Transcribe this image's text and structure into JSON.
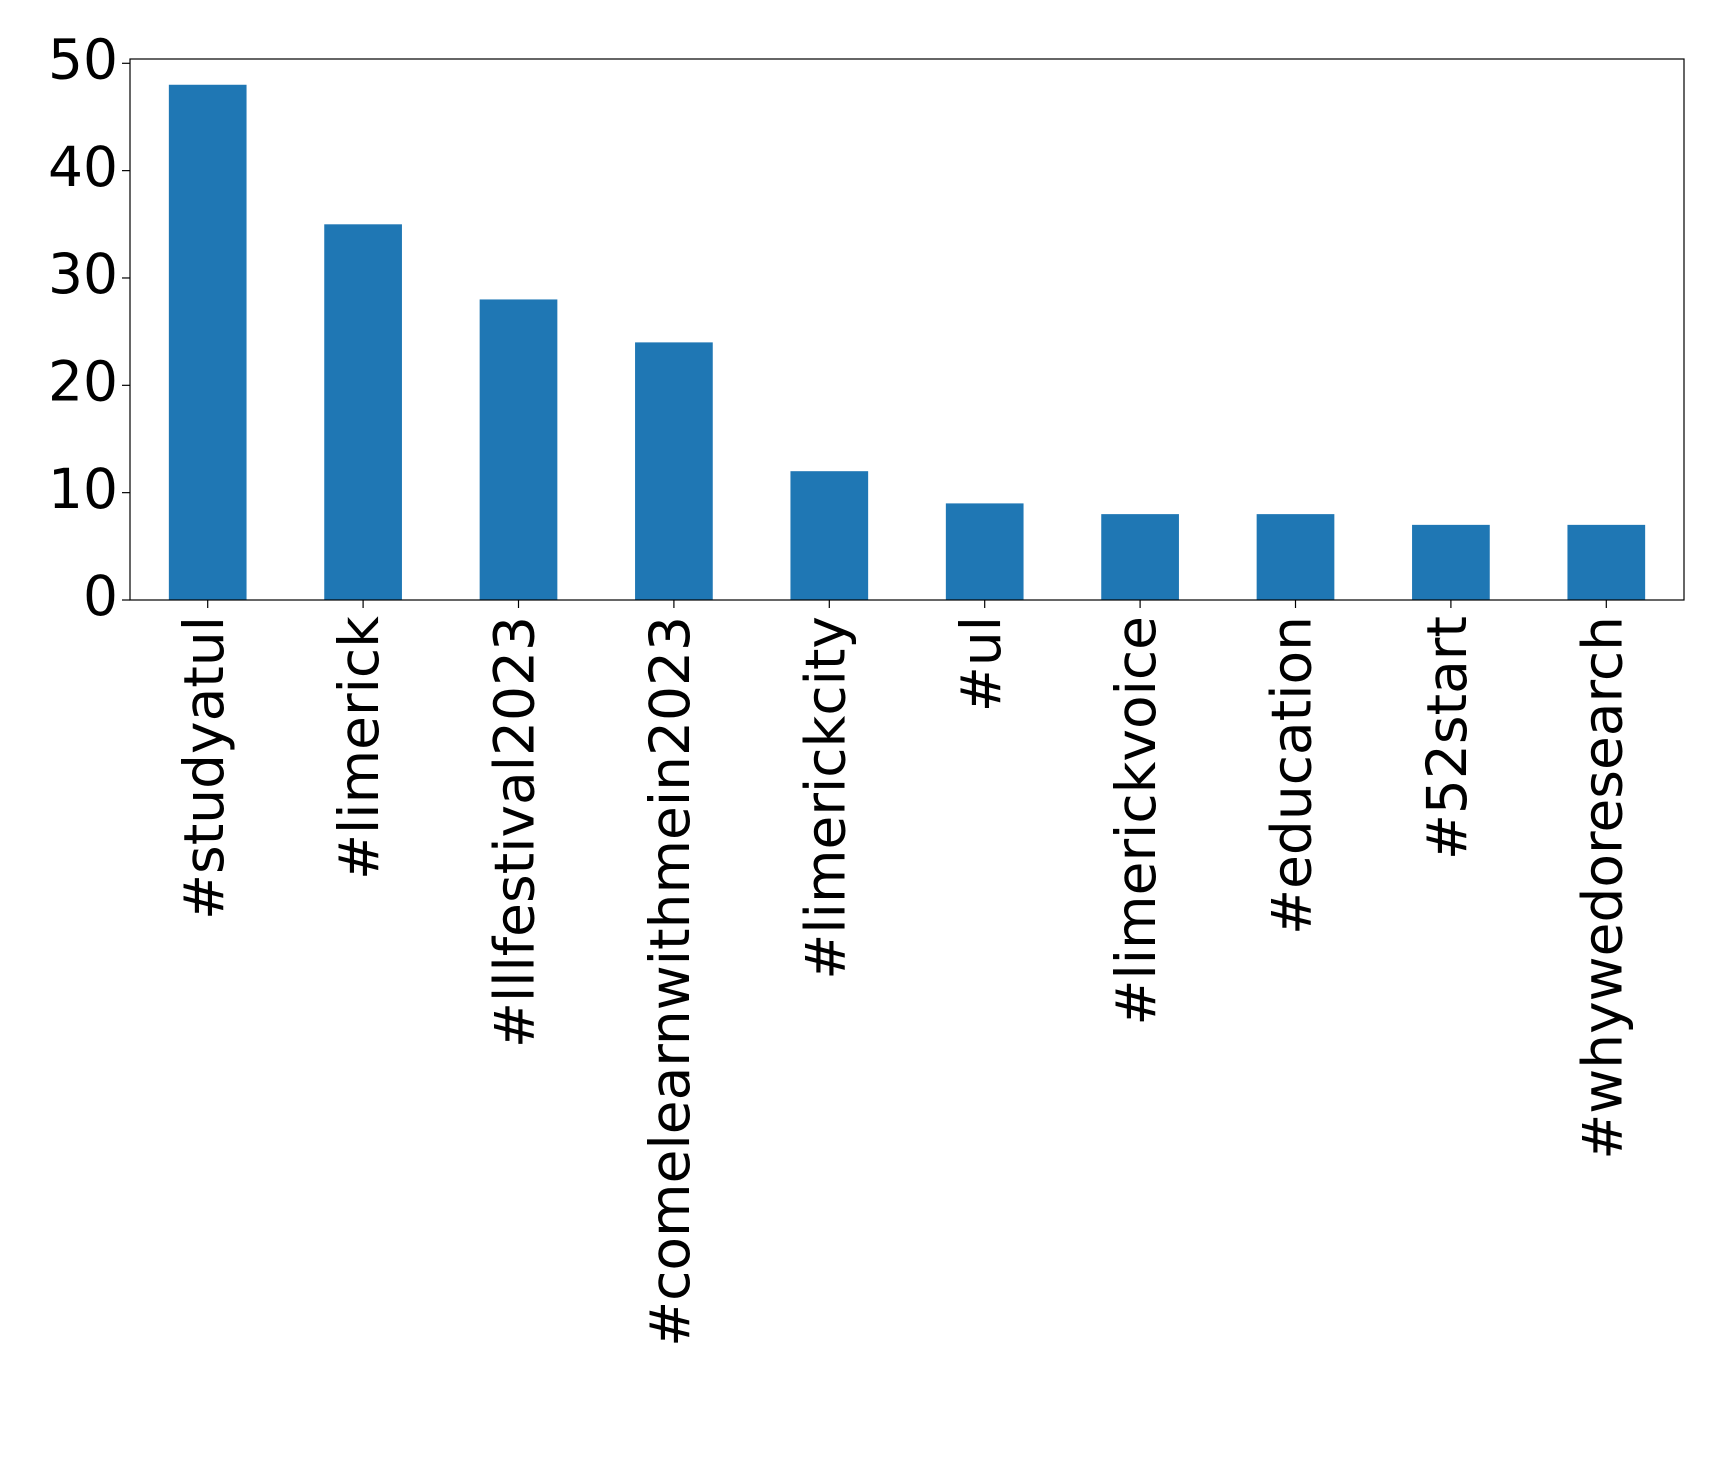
{
  "chart_data": {
    "type": "bar",
    "categories": [
      "#studyatul",
      "#limerick",
      "#lllfestival2023",
      "#comelearnwithmein2023",
      "#limerickcity",
      "#ul",
      "#limerickvoice",
      "#education",
      "#52start",
      "#whywedoresearch"
    ],
    "values": [
      48,
      35,
      28,
      24,
      12,
      9,
      8,
      8,
      7,
      7
    ],
    "color": "#1f77b4",
    "ylim": [
      0,
      50.4
    ],
    "yticks": [
      0,
      10,
      20,
      30,
      40,
      50
    ],
    "grid": false
  }
}
